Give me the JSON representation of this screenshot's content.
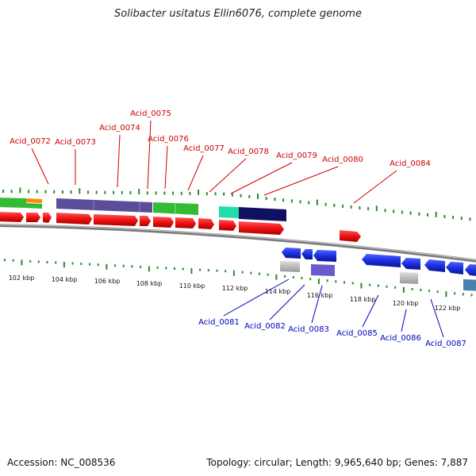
{
  "title": "Solibacter usitatus Ellin6076, complete genome",
  "footer": {
    "accession": "Accession: NC_008536",
    "summary": "Topology: circular; Length: 9,965,640 bp; Genes: 7,887"
  },
  "axis": {
    "tick_labels": [
      "102 kbp",
      "104 kbp",
      "106 kbp",
      "108 kbp",
      "110 kbp",
      "112 kbp",
      "114 kbp",
      "116 kbp",
      "118 kbp",
      "120 kbp",
      "122 kbp"
    ]
  },
  "colors": {
    "forward_label": "#cc0000",
    "reverse_label": "#0000bb",
    "backbone": "#888888",
    "gc_ticks": "#2a8a2a",
    "forward_gene": "#ee1111",
    "reverse_gene": "#1a2fe0",
    "pseudo_gene": "#aaaaaa",
    "cog_green": "#33bb33",
    "cog_orange": "#ff8800",
    "cog_purple": "#5a4e9a",
    "cog_teal": "#22ddaa",
    "cog_navy": "#101060",
    "cog_violet": "#6a5acd",
    "cog_steel": "#4a7fb0"
  },
  "forward_labels": [
    "Acid_0072",
    "Acid_0073",
    "Acid_0074",
    "Acid_0075",
    "Acid_0076",
    "Acid_0077",
    "Acid_0078",
    "Acid_0079",
    "Acid_0080",
    "Acid_0084"
  ],
  "reverse_labels": [
    "Acid_0081",
    "Acid_0082",
    "Acid_0083",
    "Acid_0085",
    "Acid_0086",
    "Acid_0087"
  ]
}
